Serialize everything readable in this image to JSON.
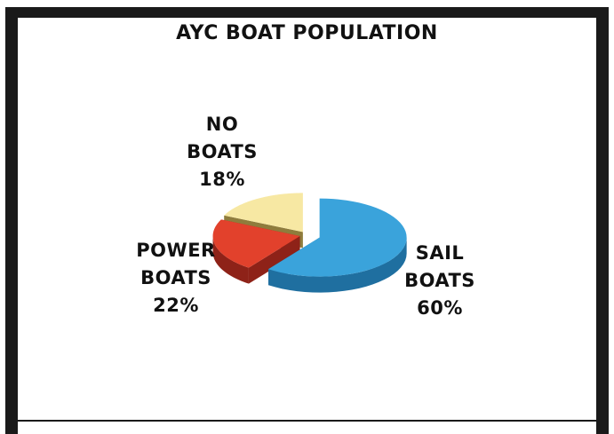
{
  "chart_data": {
    "type": "pie",
    "title": "AYC BOAT POPULATION",
    "slices": [
      {
        "label_line1": "SAIL",
        "label_line2": "BOATS",
        "percent_label": "60%",
        "value": 60,
        "color": "#3aa3db",
        "side_color": "#1f6fa0"
      },
      {
        "label_line1": "POWER",
        "label_line2": "BOATS",
        "percent_label": "22%",
        "value": 22,
        "color": "#e2412c",
        "side_color": "#8e2218"
      },
      {
        "label_line1": "NO",
        "label_line2": "BOATS",
        "percent_label": "18%",
        "value": 18,
        "color": "#f7e8a3",
        "side_color": "#8f7c3c"
      }
    ],
    "legend": "none"
  }
}
